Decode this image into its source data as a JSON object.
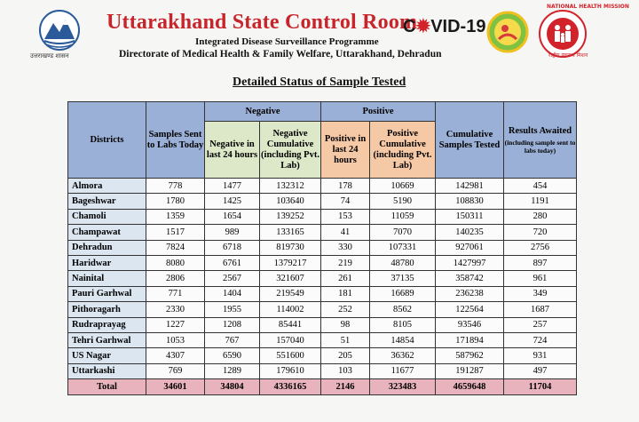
{
  "header": {
    "title": "Uttarakhand State Control Room",
    "covid_prefix": "C",
    "covid_suffix": "VID-19",
    "subtitle1": "Integrated Disease Surveillance Programme",
    "subtitle2": "Directorate of Medical Health & Family Welfare, Uttarakhand, Dehradun",
    "left_logo_caption": "उत्तराखण्ड शासन",
    "nhm_text_top": "NATIONAL HEALTH MISSION",
    "nhm_text_bottom": "राष्ट्रीय स्वास्थ्य मिशन"
  },
  "heading": "Detailed Status of Sample Tested",
  "table": {
    "headers": {
      "districts": "Districts",
      "samples_sent": "Samples Sent to Labs Today",
      "negative_group": "Negative",
      "positive_group": "Positive",
      "neg_24": "Negative in last 24 hours",
      "neg_cum": "Negative Cumulative (including Pvt. Lab)",
      "pos_24": "Positive in last 24 hours",
      "pos_cum": "Positive Cumulative (including Pvt. Lab)",
      "cum_samples": "Cumulative Samples Tested",
      "results_awaited": "Results Awaited",
      "results_awaited_note": "(including sample sent to labs today)"
    },
    "rows": [
      [
        "Almora",
        "778",
        "1477",
        "132312",
        "178",
        "10669",
        "142981",
        "454"
      ],
      [
        "Bageshwar",
        "1780",
        "1425",
        "103640",
        "74",
        "5190",
        "108830",
        "1191"
      ],
      [
        "Chamoli",
        "1359",
        "1654",
        "139252",
        "153",
        "11059",
        "150311",
        "280"
      ],
      [
        "Champawat",
        "1517",
        "989",
        "133165",
        "41",
        "7070",
        "140235",
        "720"
      ],
      [
        "Dehradun",
        "7824",
        "6718",
        "819730",
        "330",
        "107331",
        "927061",
        "2756"
      ],
      [
        "Haridwar",
        "8080",
        "6761",
        "1379217",
        "219",
        "48780",
        "1427997",
        "897"
      ],
      [
        "Nainital",
        "2806",
        "2567",
        "321607",
        "261",
        "37135",
        "358742",
        "961"
      ],
      [
        "Pauri Garhwal",
        "771",
        "1404",
        "219549",
        "181",
        "16689",
        "236238",
        "349"
      ],
      [
        "Pithoragarh",
        "2330",
        "1955",
        "114002",
        "252",
        "8562",
        "122564",
        "1687"
      ],
      [
        "Rudraprayag",
        "1227",
        "1208",
        "85441",
        "98",
        "8105",
        "93546",
        "257"
      ],
      [
        "Tehri Garhwal",
        "1053",
        "767",
        "157040",
        "51",
        "14854",
        "171894",
        "724"
      ],
      [
        "US Nagar",
        "4307",
        "6590",
        "551600",
        "205",
        "36362",
        "587962",
        "931"
      ],
      [
        "Uttarkashi",
        "769",
        "1289",
        "179610",
        "103",
        "11677",
        "191287",
        "497"
      ]
    ],
    "total": [
      "Total",
      "34601",
      "34804",
      "4336165",
      "2146",
      "323483",
      "4659648",
      "11704"
    ]
  }
}
